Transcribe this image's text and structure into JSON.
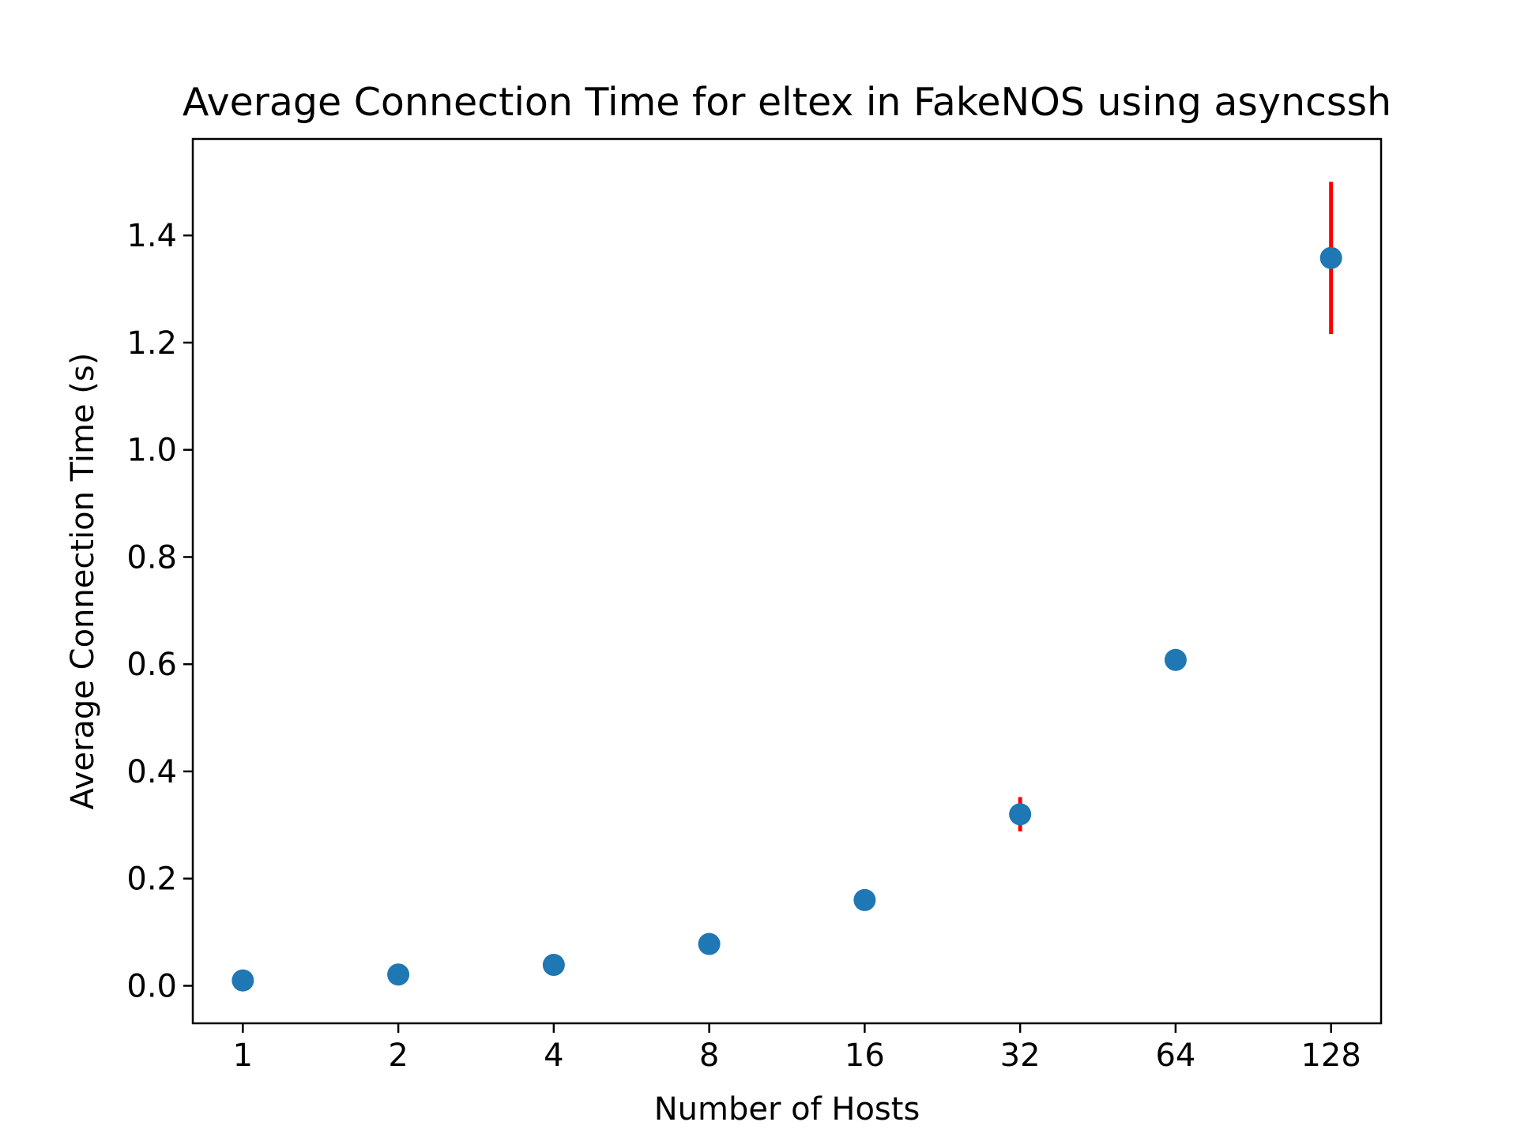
{
  "chart_data": {
    "type": "scatter",
    "title": "Average Connection Time for eltex in FakeNOS using asyncssh",
    "xlabel": "Number of Hosts",
    "ylabel": "Average Connection Time (s)",
    "x_scale": "log2",
    "x_ticks": [
      "1",
      "2",
      "4",
      "8",
      "16",
      "32",
      "64",
      "128"
    ],
    "y_ticks": [
      "0.0",
      "0.2",
      "0.4",
      "0.6",
      "0.8",
      "1.0",
      "1.2",
      "1.4"
    ],
    "xlim": [
      0.8,
      160
    ],
    "ylim": [
      -0.07,
      1.58
    ],
    "grid": false,
    "marker_color": "#1f77b4",
    "errorbar_color": "#ff0000",
    "series": [
      {
        "x": [
          1,
          2,
          4,
          8,
          16,
          32,
          64,
          128
        ],
        "y": [
          0.01,
          0.021,
          0.039,
          0.078,
          0.16,
          0.32,
          0.608,
          1.358
        ],
        "yerr": [
          0.001,
          0.002,
          0.003,
          0.004,
          0.006,
          0.032,
          0.01,
          0.142
        ]
      }
    ]
  }
}
